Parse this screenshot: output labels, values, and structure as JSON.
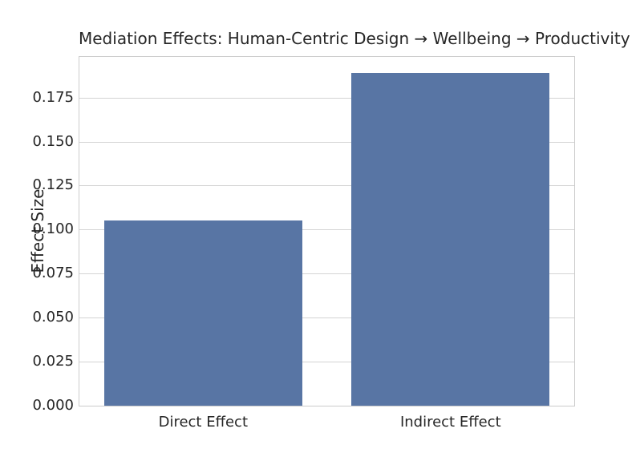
{
  "chart_data": {
    "type": "bar",
    "title": "Mediation Effects: Human-Centric Design → Wellbeing → Productivity",
    "xlabel": "",
    "ylabel": "Effect Size",
    "categories": [
      "Direct Effect",
      "Indirect Effect"
    ],
    "values": [
      0.105,
      0.189
    ],
    "ylim": [
      0,
      0.198
    ],
    "yticks": [
      0,
      0.025,
      0.05,
      0.075,
      0.1,
      0.125,
      0.15,
      0.175
    ],
    "ytick_labels": [
      "0.000",
      "0.025",
      "0.050",
      "0.075",
      "0.100",
      "0.125",
      "0.150",
      "0.175"
    ],
    "grid": true,
    "legend": false,
    "bar_width_fraction": 0.8,
    "colors": {
      "bar": "#5875A4",
      "grid": "#d4d4d4",
      "spine": "#cccccc",
      "text": "#262626",
      "background": "#ffffff"
    }
  }
}
